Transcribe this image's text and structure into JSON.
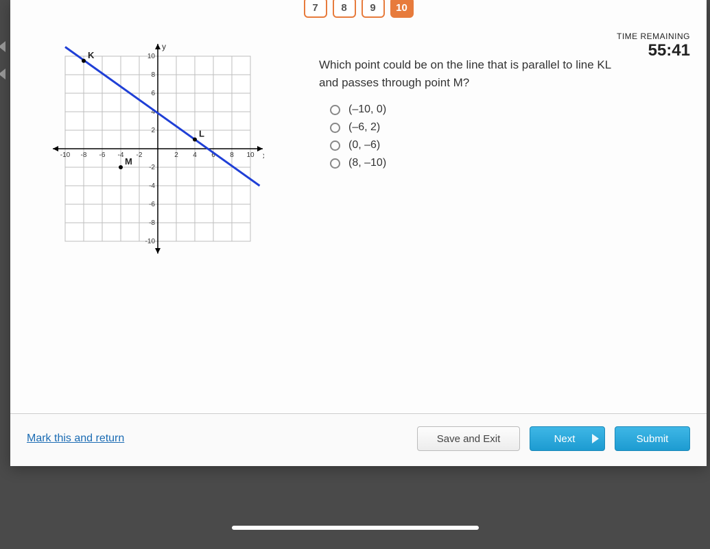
{
  "nav": {
    "items": [
      {
        "label": "7",
        "active": false
      },
      {
        "label": "8",
        "active": false
      },
      {
        "label": "9",
        "active": false
      },
      {
        "label": "10",
        "active": true
      }
    ],
    "pill_border": "#e77b3c",
    "pill_active_bg": "#e77b3c"
  },
  "timer": {
    "label": "TIME REMAINING",
    "value": "55:41"
  },
  "question": {
    "text": "Which point could be on the line that is parallel to line KL and passes through point M?",
    "options": [
      {
        "label": "(–10, 0)"
      },
      {
        "label": "(–6, 2)"
      },
      {
        "label": "(0, –6)"
      },
      {
        "label": "(8, –10)"
      }
    ]
  },
  "footer": {
    "mark_return": "Mark this and return",
    "save_exit": "Save and Exit",
    "next": "Next",
    "submit": "Submit"
  },
  "graph": {
    "type": "line-on-grid",
    "xlim": [
      -10,
      10
    ],
    "ylim": [
      -10,
      10
    ],
    "tick_step": 2,
    "grid_color": "#bdbdbd",
    "axis_color": "#000000",
    "background_color": "#ffffff",
    "axis_labels": {
      "x": "x",
      "y": "y"
    },
    "x_ticks": [
      -10,
      -8,
      -6,
      -4,
      -2,
      2,
      4,
      6,
      8,
      10
    ],
    "y_ticks": [
      -10,
      -8,
      -6,
      -4,
      -2,
      2,
      4,
      6,
      8,
      10
    ],
    "line": {
      "points": [
        [
          -10,
          11
        ],
        [
          11,
          -4
        ]
      ],
      "color": "#1f3fd6",
      "width": 3
    },
    "labeled_points": [
      {
        "name": "K",
        "x": -8,
        "y": 9.5
      },
      {
        "name": "L",
        "x": 4,
        "y": 1
      },
      {
        "name": "M",
        "x": -4,
        "y": -2
      }
    ],
    "point_marker_color": "#000000",
    "label_fontsize": 13
  },
  "colors": {
    "page_bg": "#4a4a4a",
    "panel_bg": "#fdfdfd",
    "primary_blue": "#1d9bd1",
    "link": "#1a6bb3"
  }
}
